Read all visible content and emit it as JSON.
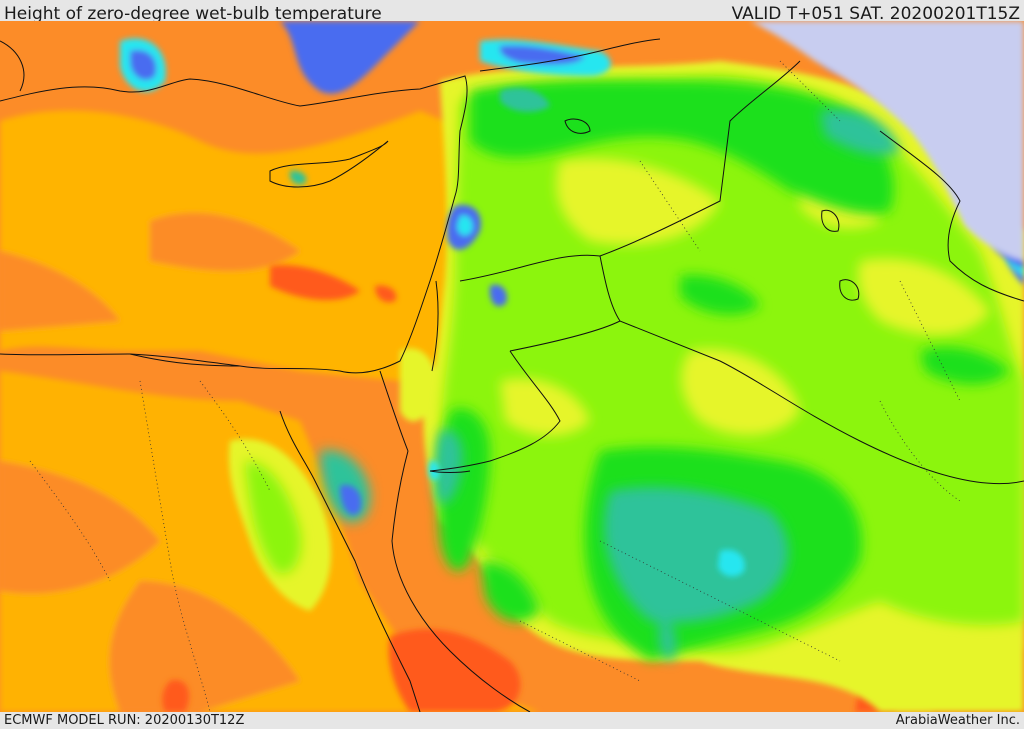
{
  "map": {
    "title": "Height of zero-degree wet-bulb temperature",
    "valid_time": "VALID T+051 SAT. 20200201T15Z",
    "model_run": "ECMWF MODEL RUN: 20200130T12Z",
    "credit": "ArabiaWeather Inc.",
    "palette": {
      "very_low": "#c8cdf0",
      "blue": "#4a6cf0",
      "cyan": "#28e6f0",
      "teal": "#2ec39a",
      "green": "#1ee01e",
      "light_green": "#8cf50a",
      "yellow": "#e6f52a",
      "orange_yellow": "#ffb400",
      "orange": "#fc8c28",
      "red": "#ff5a1e",
      "border": "#111111"
    }
  }
}
